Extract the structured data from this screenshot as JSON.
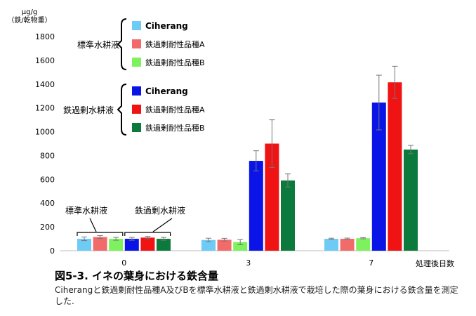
{
  "chart_data": {
    "type": "bar",
    "unit_label": "μg/g",
    "unit_sublabel": "（鉄/乾物重）",
    "xlabel": "処理後日数",
    "categories": [
      "0",
      "3",
      "7"
    ],
    "ylim": [
      0,
      1900
    ],
    "yticks": [
      0,
      200,
      400,
      600,
      800,
      1000,
      1200,
      1400,
      1600,
      1800
    ],
    "grid": false,
    "error_bars": true,
    "series": [
      {
        "name": "Ciherang",
        "group": "標準水耕液",
        "color": "#6ecbf5",
        "values": [
          100,
          90,
          100
        ],
        "errors": [
          15,
          15,
          5
        ]
      },
      {
        "name": "鉄過剰耐性品種A",
        "group": "標準水耕液",
        "color": "#f26b6b",
        "values": [
          115,
          92,
          100
        ],
        "errors": [
          12,
          12,
          6
        ]
      },
      {
        "name": "鉄過剰耐性品種B",
        "group": "標準水耕液",
        "color": "#7ef25e",
        "values": [
          100,
          72,
          105
        ],
        "errors": [
          12,
          22,
          5
        ]
      },
      {
        "name": "Ciherang",
        "group": "鉄過剰水耕液",
        "color": "#0a14e6",
        "values": [
          100,
          755,
          1245
        ],
        "errors": [
          12,
          85,
          230
        ]
      },
      {
        "name": "鉄過剰耐性品種A",
        "group": "鉄過剰水耕液",
        "color": "#f01313",
        "values": [
          110,
          900,
          1415
        ],
        "errors": [
          10,
          200,
          135
        ]
      },
      {
        "name": "鉄過剰耐性品種B",
        "group": "鉄過剰水耕液",
        "color": "#0c7a3c",
        "values": [
          100,
          590,
          850
        ],
        "errors": [
          12,
          55,
          35
        ]
      }
    ],
    "legend": {
      "placement": "top-left",
      "groups": [
        "標準水耕液",
        "鉄過剰水耕液"
      ]
    },
    "annotations": {
      "left": "標準水耕液",
      "right": "鉄過剰水耕液"
    }
  },
  "caption": {
    "title": "図5-3. イネの葉身における鉄含量",
    "body": "Ciherangと鉄過剰耐性品種A及びBを標準水耕液と鉄過剰水耕液で栽培した際の葉身における鉄含量を測定した."
  }
}
